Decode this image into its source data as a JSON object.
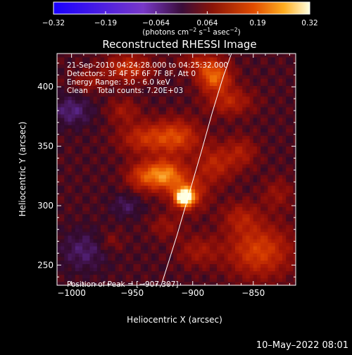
{
  "chart_data": {
    "type": "heatmap",
    "title": "Reconstructed RHESSI Image",
    "xlabel": "Heliocentric X (arcsec)",
    "ylabel": "Heliocentric Y (arcsec)",
    "xlim": [
      -1012,
      -815
    ],
    "ylim": [
      233,
      428
    ],
    "xticks": [
      -1000,
      -950,
      -900,
      -850
    ],
    "xtick_labels": [
      "−1000",
      "−950",
      "−900",
      "−850"
    ],
    "yticks": [
      250,
      300,
      350,
      400
    ],
    "ytick_labels": [
      "250",
      "300",
      "350",
      "400"
    ],
    "colorbar": {
      "range": [
        -0.32,
        0.32
      ],
      "ticks": [
        -0.32,
        -0.19,
        -0.064,
        0.064,
        0.19,
        0.32
      ],
      "tick_labels": [
        "−0.32",
        "−0.19",
        "−0.064",
        "0.064",
        "0.19",
        "0.32"
      ],
      "unit_parts": [
        "(photons cm",
        "−2",
        " s",
        "−1",
        " asec",
        "−2",
        ")"
      ]
    },
    "annotations": [
      "21-Sep-2010 04:24:28.000 to 04:25:32.000",
      "Detectors: 3F 4F 5F 6F 7F 8F, Att 0",
      "Energy Range: 3.0 - 6.0 keV",
      "Clean    Total counts: 7.20E+03"
    ],
    "peak_label": "Position of Peak = [−907,307]",
    "peak": [
      -907,
      307
    ],
    "emission_blobs": [
      {
        "x": -907,
        "y": 307,
        "sx": 5,
        "sy": 5,
        "v": 0.32
      },
      {
        "x": -903,
        "y": 311,
        "sx": 10,
        "sy": 10,
        "v": 0.12
      },
      {
        "x": -923,
        "y": 326,
        "sx": 11,
        "sy": 9,
        "v": 0.2
      },
      {
        "x": -942,
        "y": 325,
        "sx": 9,
        "sy": 8,
        "v": 0.1
      },
      {
        "x": -913,
        "y": 358,
        "sx": 13,
        "sy": 10,
        "v": 0.13
      },
      {
        "x": -940,
        "y": 357,
        "sx": 14,
        "sy": 9,
        "v": 0.1
      },
      {
        "x": -957,
        "y": 380,
        "sx": 9,
        "sy": 7,
        "v": 0.06
      },
      {
        "x": -882,
        "y": 408,
        "sx": 9,
        "sy": 8,
        "v": 0.17
      },
      {
        "x": -870,
        "y": 388,
        "sx": 13,
        "sy": 8,
        "v": 0.09
      },
      {
        "x": -893,
        "y": 420,
        "sx": 12,
        "sy": 6,
        "v": 0.08
      },
      {
        "x": -953,
        "y": 416,
        "sx": 13,
        "sy": 8,
        "v": 0.11
      },
      {
        "x": -985,
        "y": 405,
        "sx": 9,
        "sy": 7,
        "v": 0.05
      },
      {
        "x": -882,
        "y": 335,
        "sx": 11,
        "sy": 11,
        "v": 0.09
      },
      {
        "x": -860,
        "y": 345,
        "sx": 9,
        "sy": 9,
        "v": 0.07
      },
      {
        "x": -845,
        "y": 262,
        "sx": 18,
        "sy": 15,
        "v": 0.13
      },
      {
        "x": -860,
        "y": 290,
        "sx": 11,
        "sy": 9,
        "v": 0.07
      },
      {
        "x": -895,
        "y": 262,
        "sx": 12,
        "sy": 9,
        "v": 0.06
      },
      {
        "x": -830,
        "y": 310,
        "sx": 9,
        "sy": 9,
        "v": 0.05
      },
      {
        "x": -922,
        "y": 283,
        "sx": 9,
        "sy": 7,
        "v": 0.05
      },
      {
        "x": -955,
        "y": 300,
        "sx": 9,
        "sy": 7,
        "v": -0.05
      },
      {
        "x": -1000,
        "y": 380,
        "sx": 12,
        "sy": 9,
        "v": -0.07
      },
      {
        "x": -990,
        "y": 262,
        "sx": 14,
        "sy": 12,
        "v": -0.06
      },
      {
        "x": -968,
        "y": 270,
        "sx": 7,
        "sy": 6,
        "v": 0.04
      }
    ],
    "limb_curve": [
      [
        -926,
        233
      ],
      [
        -913,
        275
      ],
      [
        -903,
        310
      ],
      [
        -893,
        345
      ],
      [
        -884,
        378
      ],
      [
        -875,
        408
      ],
      [
        -868,
        428
      ]
    ],
    "colors": {
      "background": "#000000",
      "text": "#ffffff",
      "limb": "#ffffff"
    }
  },
  "footer": {
    "timestamp": "10–May–2022 08:01"
  }
}
